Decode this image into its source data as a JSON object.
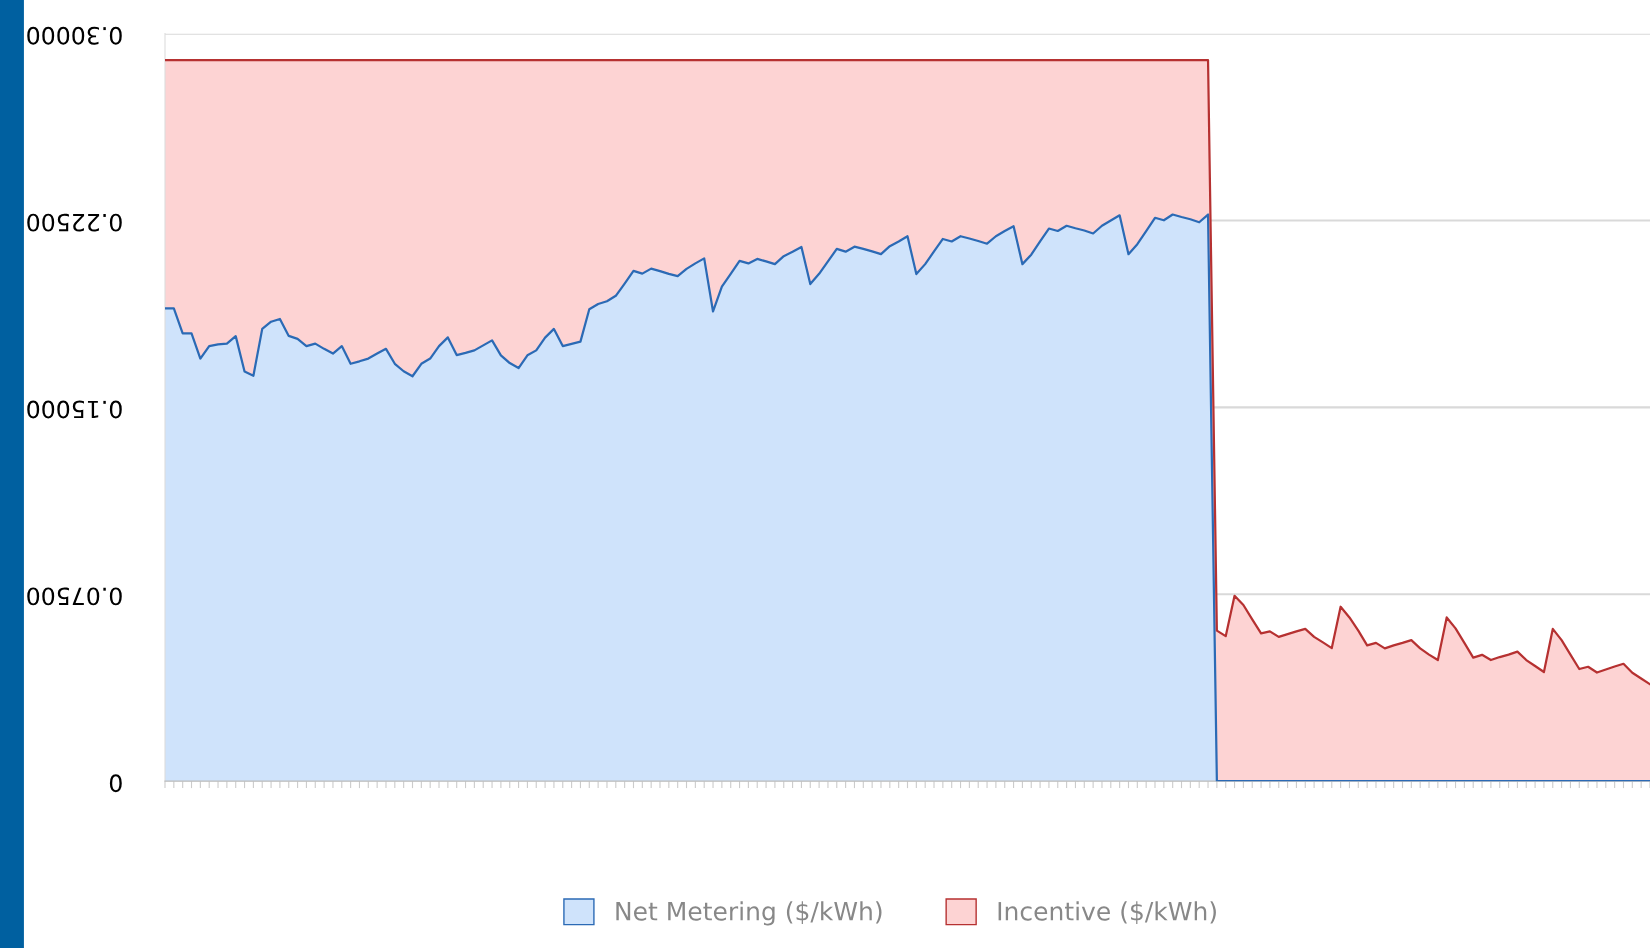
{
  "chart_data": {
    "type": "area",
    "stacked": true,
    "categories": [
      null,
      null,
      null,
      null,
      null,
      null,
      null,
      null,
      null,
      null,
      null,
      null,
      null,
      null,
      null,
      null,
      null,
      null,
      null,
      null,
      null,
      null,
      null,
      null,
      null,
      null,
      null,
      null,
      null,
      null,
      null,
      null,
      null,
      null,
      null,
      null,
      null,
      null,
      null,
      null,
      null,
      null,
      null,
      null,
      null,
      null,
      null,
      null,
      null,
      null,
      null,
      null,
      null,
      null,
      null,
      null,
      null,
      null,
      null,
      null,
      null,
      null,
      null,
      null,
      null,
      null,
      null,
      null,
      null,
      null,
      null,
      null,
      null,
      null,
      null,
      null,
      null,
      null,
      null,
      null,
      null,
      null,
      null,
      null,
      null,
      null,
      null,
      null,
      null,
      null,
      null,
      null,
      null,
      null,
      null,
      null,
      null,
      null,
      null,
      null,
      null,
      null,
      null,
      null,
      null,
      null,
      null,
      null,
      null,
      null,
      null,
      null,
      null,
      null,
      null,
      null,
      null,
      null,
      null,
      null,
      null,
      null,
      null,
      null,
      null,
      null,
      null,
      null,
      null,
      null,
      null,
      null,
      null,
      null,
      null,
      null,
      null,
      null,
      null,
      null,
      null,
      null,
      null,
      null,
      null,
      null,
      null,
      null,
      null,
      null,
      null,
      null,
      null,
      null,
      null,
      null,
      null,
      null,
      null,
      null,
      null,
      null,
      null,
      null,
      null,
      null,
      null,
      null,
      null
    ],
    "series": [
      {
        "name": "Net Metering ($/kWh)",
        "color": "#cfe3fb",
        "values": [
          0.1897,
          0.1897,
          0.1797,
          0.1797,
          0.1696,
          0.1746,
          0.1753,
          0.1756,
          0.1786,
          0.1644,
          0.1627,
          0.1815,
          0.1844,
          0.1855,
          0.1787,
          0.1775,
          0.1746,
          0.1756,
          0.1735,
          0.1716,
          0.1746,
          0.1675,
          0.1685,
          0.1696,
          0.1716,
          0.1735,
          0.1675,
          0.1645,
          0.1625,
          0.1675,
          0.1696,
          0.1746,
          0.1781,
          0.171,
          0.1719,
          0.1729,
          0.1749,
          0.1769,
          0.1709,
          0.1678,
          0.1658,
          0.1709,
          0.1729,
          0.178,
          0.1815,
          0.1746,
          0.1755,
          0.1764,
          0.1894,
          0.1915,
          0.1926,
          0.1948,
          0.1997,
          0.2048,
          0.2037,
          0.2057,
          0.2047,
          0.2036,
          0.2027,
          0.2056,
          0.2078,
          0.2098,
          0.1885,
          0.1985,
          0.2036,
          0.2088,
          0.2078,
          0.2096,
          0.2086,
          0.2075,
          0.2107,
          0.2125,
          0.2144,
          0.1995,
          0.2036,
          0.2086,
          0.2136,
          0.2125,
          0.2145,
          0.2136,
          0.2126,
          0.2115,
          0.2147,
          0.2166,
          0.2187,
          0.2035,
          0.2075,
          0.2126,
          0.2176,
          0.2166,
          0.2187,
          0.2178,
          0.2168,
          0.2157,
          0.2187,
          0.2208,
          0.2227,
          0.2075,
          0.2113,
          0.2166,
          0.2218,
          0.2208,
          0.2229,
          0.2219,
          0.221,
          0.2198,
          0.2229,
          0.225,
          0.2271,
          0.2115,
          0.2155,
          0.2207,
          0.2261,
          0.2251,
          0.2274,
          0.2264,
          0.2255,
          0.2243,
          0.2274,
          0,
          0,
          0,
          0,
          0,
          0,
          0,
          0,
          0,
          0,
          0,
          0,
          0,
          0,
          0,
          0,
          0,
          0,
          0,
          0,
          0,
          0,
          0,
          0,
          0,
          0,
          0,
          0,
          0,
          0,
          0,
          0,
          0,
          0,
          0,
          0,
          0,
          0,
          0,
          0,
          0,
          0,
          0,
          0,
          0,
          0,
          0,
          0,
          0,
          0
        ]
      },
      {
        "name": "Incentive ($/kWh)",
        "color": "#fdd3d3",
        "values": [
          0.0997,
          0.0997,
          0.1097,
          0.1097,
          0.1198,
          0.1148,
          0.1141,
          0.1138,
          0.1108,
          0.125,
          0.1267,
          0.1079,
          0.105,
          0.1039,
          0.1107,
          0.1119,
          0.1148,
          0.1138,
          0.1159,
          0.1178,
          0.1148,
          0.1219,
          0.1209,
          0.1198,
          0.1178,
          0.1159,
          0.1219,
          0.1249,
          0.1269,
          0.1219,
          0.1198,
          0.1148,
          0.1113,
          0.1184,
          0.1175,
          0.1165,
          0.1145,
          0.1125,
          0.1185,
          0.1216,
          0.1236,
          0.1185,
          0.1165,
          0.1114,
          0.1079,
          0.1148,
          0.1139,
          0.113,
          0.1,
          0.0979,
          0.0968,
          0.0946,
          0.0897,
          0.0846,
          0.0857,
          0.0837,
          0.0847,
          0.0858,
          0.0867,
          0.0838,
          0.0816,
          0.0796,
          0.1009,
          0.0909,
          0.0858,
          0.0806,
          0.0816,
          0.0798,
          0.0808,
          0.0819,
          0.0787,
          0.0769,
          0.075,
          0.0899,
          0.0858,
          0.0808,
          0.0758,
          0.0769,
          0.0749,
          0.0758,
          0.0768,
          0.0779,
          0.0747,
          0.0728,
          0.0707,
          0.0859,
          0.0819,
          0.0768,
          0.0718,
          0.0728,
          0.0707,
          0.0716,
          0.0726,
          0.0737,
          0.0707,
          0.0686,
          0.0667,
          0.0819,
          0.0781,
          0.0728,
          0.0676,
          0.0686,
          0.0665,
          0.0675,
          0.0684,
          0.0696,
          0.0665,
          0.0644,
          0.0623,
          0.0779,
          0.0739,
          0.0687,
          0.0633,
          0.0643,
          0.062,
          0.063,
          0.0639,
          0.0651,
          0.062,
          0.0604,
          0.0582,
          0.0744,
          0.0707,
          0.0649,
          0.0593,
          0.0601,
          0.0579,
          0.059,
          0.0601,
          0.0611,
          0.0579,
          0.0557,
          0.0534,
          0.07,
          0.0657,
          0.0604,
          0.0545,
          0.0555,
          0.0533,
          0.0545,
          0.0555,
          0.0566,
          0.0533,
          0.0508,
          0.0486,
          0.0657,
          0.0613,
          0.0555,
          0.0496,
          0.0507,
          0.0486,
          0.0498,
          0.0508,
          0.052,
          0.0486,
          0.0462,
          0.0438,
          0.0611,
          0.0566,
          0.0508,
          0.045,
          0.0459,
          0.0436,
          0.0448,
          0.046,
          0.0471,
          0.0435,
          0.0412,
          0.0389
        ]
      }
    ],
    "ylim": [
      0,
      0.3
    ],
    "yticks": [
      0,
      {
        "value": 0.075,
        "label": "0.07500"
      },
      {
        "value": 0.15,
        "label": "0.15000"
      },
      {
        "value": 0.225,
        "label": "0.22500"
      },
      {
        "value": 0.3,
        "label": "0.30000"
      }
    ],
    "grid": "y",
    "legend": "bottom"
  }
}
